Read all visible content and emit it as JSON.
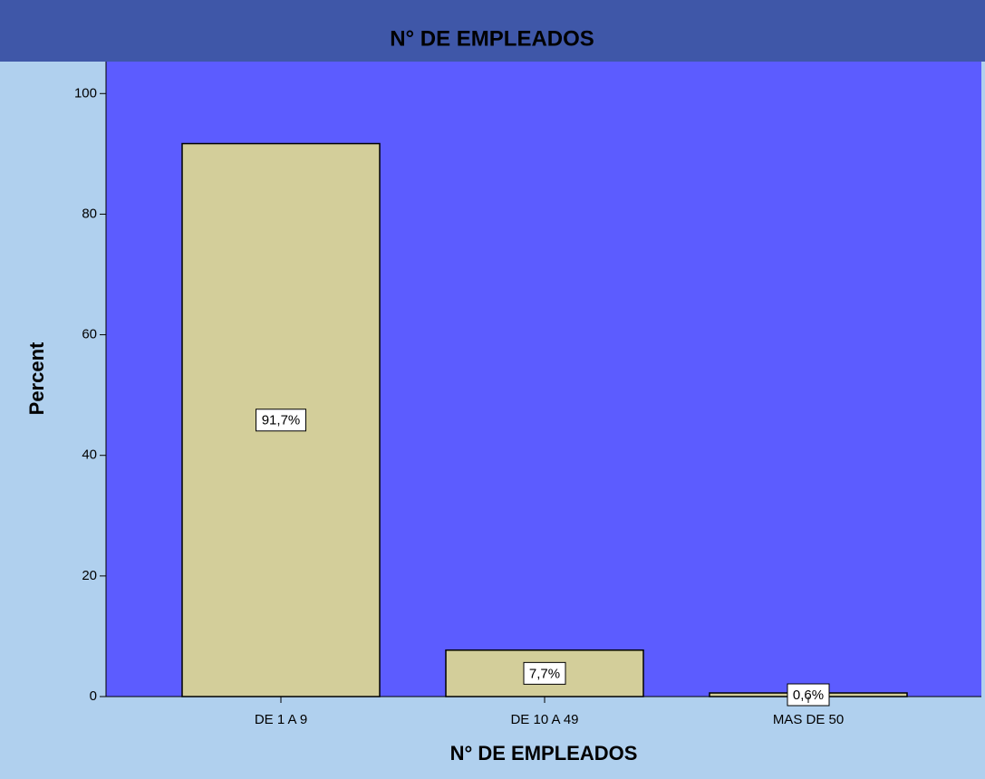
{
  "chart_data": {
    "type": "bar",
    "title": "N° DE EMPLEADOS",
    "categories": [
      "DE 1 A 9",
      "DE 10 A 49",
      "MAS DE 50"
    ],
    "values": [
      91.7,
      7.7,
      0.6
    ],
    "value_labels": [
      "91,7%",
      "7,7%",
      "0,6%"
    ],
    "color": "#d3ce9a",
    "xlabel": "N° DE EMPLEADOS",
    "ylabel": "Percent",
    "ylim": [
      0,
      105.3
    ],
    "yticks": [
      0,
      20,
      40,
      60,
      80,
      100
    ]
  }
}
